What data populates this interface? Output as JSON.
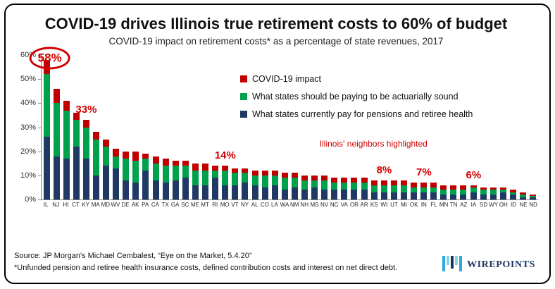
{
  "title": "COVID-19 drives Illinois true retirement costs to 60% of budget",
  "subtitle": "COVID-19 impact on retirement costs* as a percentage of state revenues, 2017",
  "colors": {
    "bar_navy": "#1F3864",
    "bar_green": "#00A14B",
    "bar_red": "#C00000",
    "annotation_red": "#D00000",
    "logo_navy": "#1B3665",
    "logo_blue": "#2FA8DC",
    "logo_light_blue": "#8CD1EA"
  },
  "chart_data": {
    "type": "bar",
    "stacked": true,
    "title": "COVID-19 drives Illinois true retirement costs to 60% of budget",
    "subtitle": "COVID-19 impact on retirement costs* as a percentage of state revenues, 2017",
    "xlabel": "",
    "ylabel": "",
    "ylim": [
      0,
      60
    ],
    "ytick_step": 10,
    "ytick_suffix": "%",
    "grid": false,
    "legend_position": "inside-top-center",
    "categories": [
      "IL",
      "NJ",
      "HI",
      "CT",
      "KY",
      "MA",
      "MD",
      "WV",
      "DE",
      "AK",
      "PA",
      "CA",
      "TX",
      "GA",
      "SC",
      "ME",
      "MT",
      "RI",
      "MO",
      "VT",
      "NY",
      "AL",
      "CO",
      "LA",
      "WA",
      "NM",
      "NH",
      "MS",
      "NV",
      "NC",
      "VA",
      "OR",
      "AR",
      "KS",
      "WI",
      "UT",
      "MI",
      "OK",
      "IN",
      "FL",
      "MN",
      "TN",
      "AZ",
      "IA",
      "SD",
      "WY",
      "OH",
      "ID",
      "NE",
      "ND"
    ],
    "series": [
      {
        "name": "What states currently pay for pensions and retiree health",
        "color": "#1F3864",
        "values": [
          26,
          18,
          17,
          22,
          17,
          10,
          14,
          13,
          8,
          7,
          12,
          8,
          7,
          8,
          9,
          6,
          6,
          9,
          6,
          6,
          7,
          6,
          5,
          6,
          4,
          5,
          4,
          5,
          4,
          4,
          4,
          4,
          4,
          3,
          3,
          3,
          3,
          3,
          3,
          3,
          2,
          2,
          2,
          3,
          2,
          2,
          3,
          2,
          1,
          1
        ]
      },
      {
        "name": "What states should be paying to be actuarially sound",
        "color": "#00A14B",
        "values": [
          26,
          22,
          20,
          11,
          13,
          15,
          8,
          5,
          9,
          9,
          5,
          7,
          7,
          6,
          5,
          6,
          6,
          3,
          6,
          5,
          4,
          4,
          5,
          4,
          5,
          4,
          4,
          3,
          4,
          3,
          3,
          3,
          3,
          3,
          3,
          3,
          3,
          2,
          2,
          2,
          2,
          2,
          2,
          2,
          2,
          2,
          1,
          1,
          1,
          0.5
        ]
      },
      {
        "name": "COVID-19 impact",
        "color": "#C00000",
        "values": [
          6,
          6,
          4,
          3,
          3,
          3,
          3,
          3,
          3,
          4,
          2,
          3,
          3,
          2,
          2,
          3,
          3,
          2,
          2,
          2,
          2,
          2,
          2,
          2,
          2,
          2,
          2,
          2,
          2,
          2,
          2,
          2,
          2,
          2,
          2,
          2,
          2,
          2,
          2,
          2,
          2,
          2,
          2,
          1,
          1,
          1,
          1,
          1,
          1,
          0.5
        ]
      }
    ],
    "annotations": [
      {
        "label": "58%",
        "state": "IL",
        "circled": true
      },
      {
        "label": "33%",
        "state": "KY",
        "circled": false
      },
      {
        "label": "14%",
        "state": "MO",
        "circled": false
      },
      {
        "label": "8%",
        "state": "WI",
        "circled": false
      },
      {
        "label": "7%",
        "state": "IN",
        "circled": false
      },
      {
        "label": "6%",
        "state": "IA",
        "circled": false
      }
    ],
    "note": "Illinois' neighbors highlighted"
  },
  "legend": {
    "items": [
      {
        "label": "COVID-19 impact",
        "color": "#C00000"
      },
      {
        "label": "What states should be paying to be actuarially sound",
        "color": "#00A14B"
      },
      {
        "label": "What states currently pay for pensions and retiree health",
        "color": "#1F3864"
      }
    ]
  },
  "footer": {
    "source_line1": "Source: JP Morgan's Michael Cembalest, “Eye on the Market, 5.4.20”",
    "source_line2": "*Unfunded pension and retiree health insurance costs, defined contribution costs and interest on net direct debt.",
    "logo_text": "WIREPOINTS"
  }
}
